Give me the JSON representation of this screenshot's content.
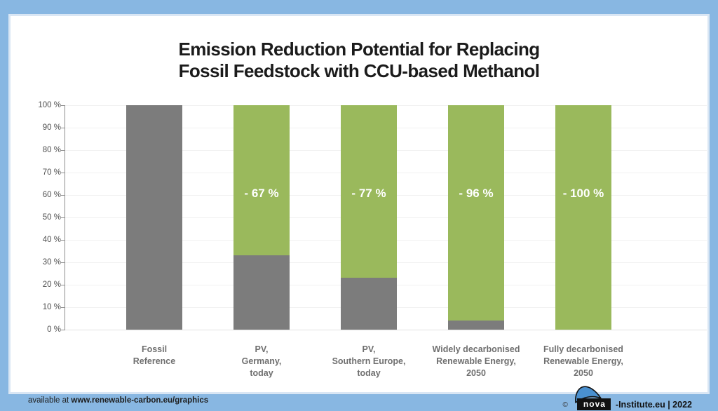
{
  "header": {
    "title_line1": "Emission Reduction Potential for Replacing",
    "title_line2": "Fossil  Feedstock with CCU-based Methanol"
  },
  "chart_data": {
    "type": "bar",
    "stacked": true,
    "title": "Emission Reduction Potential for Replacing Fossil Feedstock with CCU-based Methanol",
    "xlabel": "",
    "ylabel": "",
    "ylim": [
      0,
      100
    ],
    "grid": true,
    "legend": false,
    "yticks": [
      "0 %",
      "10 %",
      "20 %",
      "30 %",
      "40 %",
      "50 %",
      "60 %",
      "70 %",
      "80 %",
      "90 %",
      "100 %"
    ],
    "categories": [
      "Fossil\nReference",
      "PV,\nGermany,\ntoday",
      "PV,\nSouthern Europe,\ntoday",
      "Widely decarbonised\nRenewable Energy,\n2050",
      "Fully decarbonised\nRenewable Energy,\n2050"
    ],
    "series": [
      {
        "name": "remaining-emissions",
        "color": "#7c7c7c",
        "values": [
          100,
          33,
          23,
          4,
          0
        ]
      },
      {
        "name": "emission-reduction",
        "color": "#9ab95c",
        "values": [
          0,
          67,
          77,
          96,
          100
        ]
      }
    ],
    "bar_labels": [
      "",
      "- 67 %",
      "- 77 %",
      "- 96 %",
      "- 100 %"
    ],
    "bar_label_y_pct": 60.5
  },
  "footer": {
    "available_prefix": "available at ",
    "url": "www.renewable-carbon.eu/graphics",
    "copyright": "©",
    "logo_text": "nova",
    "suffix": "-Institute.eu | 2022"
  },
  "colors": {
    "frame": "#88b7e2",
    "frame_inner": "#d9e6f4",
    "gray_bar": "#7c7c7c",
    "green_bar": "#9ab95c",
    "title_text": "#1b1b1b",
    "axis_text": "#4f4f4f",
    "category_text": "#6f6f6f"
  }
}
